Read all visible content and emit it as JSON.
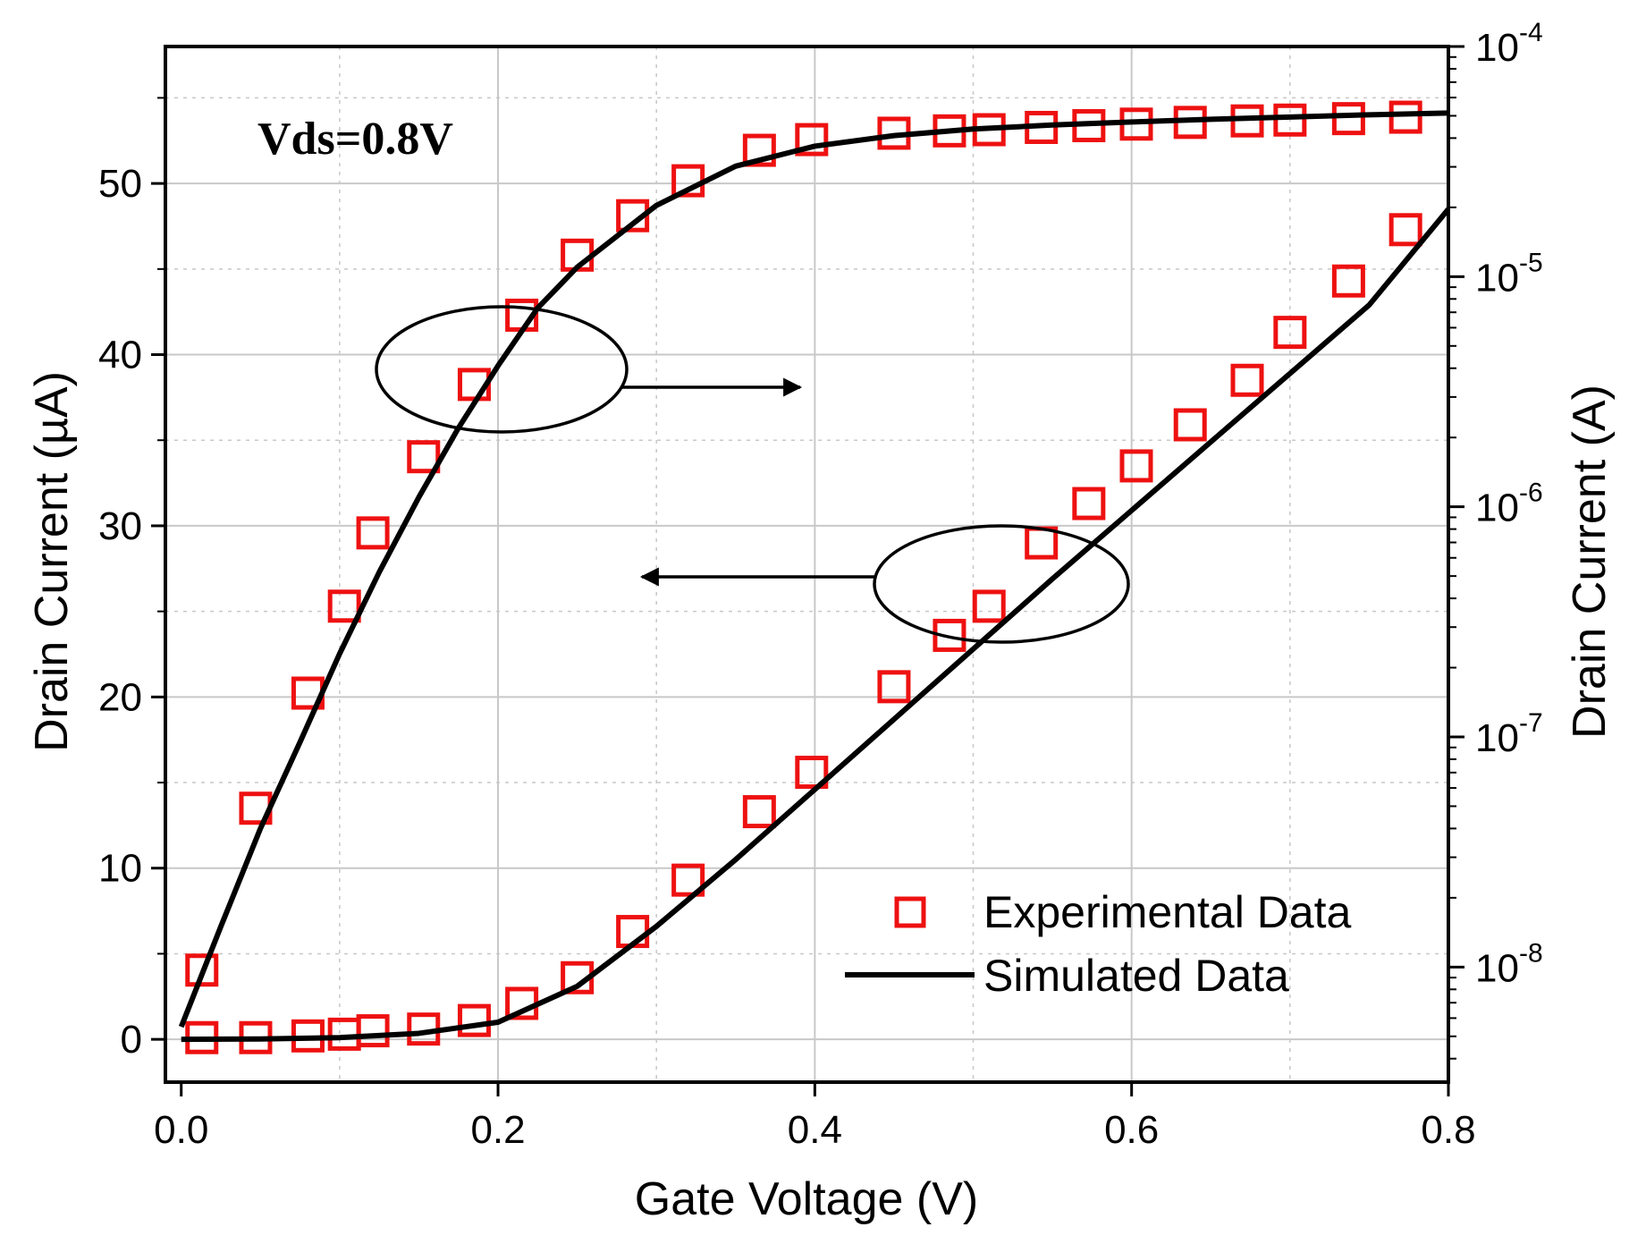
{
  "chart_data": {
    "type": "scatter+line",
    "xlabel": "Gate Voltage (V)",
    "ylabel_left": "Drain Current (µA)",
    "ylabel_right": "Drain Current (A)",
    "annotation": "Vds=0.8V",
    "grid": true,
    "xlim": [
      -0.01,
      0.8
    ],
    "ylim_left": [
      -2.5,
      58
    ],
    "ylim_right_log10": [
      -8.5,
      -4
    ],
    "x_ticks": [
      "0.0",
      "0.2",
      "0.4",
      "0.6",
      "0.8"
    ],
    "y_left_ticks": [
      "0",
      "10",
      "20",
      "30",
      "40",
      "50"
    ],
    "y_right_ticks": [
      {
        "base": "10",
        "exp": "-8"
      },
      {
        "base": "10",
        "exp": "-7"
      },
      {
        "base": "10",
        "exp": "-6"
      },
      {
        "base": "10",
        "exp": "-5"
      },
      {
        "base": "10",
        "exp": "-4"
      }
    ],
    "legend": {
      "position": "bottom-right",
      "entries": [
        "Experimental Data",
        "Simulated Data"
      ]
    },
    "colors": {
      "experimental": "#ee1111",
      "simulated": "#000000",
      "grid": "#c8c8c8"
    },
    "series": [
      {
        "name": "Experimental Data (linear, µA)",
        "axis": "left",
        "marker": "square-open",
        "x": [
          0.013,
          0.047,
          0.08,
          0.103,
          0.121,
          0.153,
          0.185,
          0.215,
          0.25,
          0.285,
          0.32,
          0.365,
          0.398,
          0.45,
          0.485,
          0.51,
          0.543,
          0.573,
          0.603,
          0.637,
          0.673,
          0.7,
          0.737,
          0.773
        ],
        "y": [
          0.1,
          0.1,
          0.2,
          0.3,
          0.5,
          0.6,
          1.1,
          2.1,
          3.6,
          6.3,
          9.3,
          13.3,
          15.6,
          20.6,
          23.6,
          25.3,
          29.0,
          31.3,
          33.5,
          35.9,
          38.5,
          41.3,
          44.3,
          47.3
        ]
      },
      {
        "name": "Simulated Data (linear, µA)",
        "axis": "left",
        "x": [
          0.0,
          0.05,
          0.1,
          0.15,
          0.2,
          0.25,
          0.3,
          0.35,
          0.4,
          0.45,
          0.5,
          0.55,
          0.6,
          0.65,
          0.7,
          0.75,
          0.8
        ],
        "y": [
          0.0,
          0.02,
          0.1,
          0.35,
          1.0,
          3.1,
          6.6,
          10.5,
          14.6,
          18.7,
          22.8,
          26.9,
          30.9,
          34.9,
          38.9,
          42.9,
          48.5
        ]
      },
      {
        "name": "Experimental Data (log, A)",
        "axis": "right",
        "marker": "square-open",
        "x": [
          0.013,
          0.047,
          0.08,
          0.103,
          0.121,
          0.153,
          0.185,
          0.215,
          0.25,
          0.285,
          0.32,
          0.365,
          0.398,
          0.45,
          0.485,
          0.51,
          0.543,
          0.573,
          0.603,
          0.637,
          0.673,
          0.7,
          0.737,
          0.773
        ],
        "y": [
          9.7e-09,
          4.9e-08,
          1.55e-07,
          3.7e-07,
          7.7e-07,
          1.65e-06,
          3.4e-06,
          6.8e-06,
          1.24e-05,
          1.84e-05,
          2.61e-05,
          3.54e-05,
          3.94e-05,
          4.2e-05,
          4.3e-05,
          4.35e-05,
          4.45e-05,
          4.53e-05,
          4.6e-05,
          4.68e-05,
          4.75e-05,
          4.79e-05,
          4.86e-05,
          4.93e-05
        ]
      },
      {
        "name": "Simulated Data (log, A)",
        "axis": "right",
        "x": [
          0.0,
          0.025,
          0.05,
          0.075,
          0.1,
          0.125,
          0.15,
          0.175,
          0.2,
          0.225,
          0.25,
          0.3,
          0.35,
          0.4,
          0.45,
          0.5,
          0.55,
          0.6,
          0.65,
          0.7,
          0.75,
          0.8
        ],
        "y": [
          5.5e-09,
          1.5e-08,
          4e-08,
          9.5e-08,
          2.3e-07,
          5.2e-07,
          1.1e-06,
          2.2e-06,
          4.1e-06,
          7.3e-06,
          1.1e-05,
          2.04e-05,
          3.02e-05,
          3.69e-05,
          4.1e-05,
          4.38e-05,
          4.56e-05,
          4.7e-05,
          4.83e-05,
          4.94e-05,
          5.05e-05,
          5.14e-05
        ]
      }
    ],
    "callouts": [
      {
        "ellipse": "around log curve",
        "arrow_direction": "right",
        "points_to": "right axis"
      },
      {
        "ellipse": "around linear curve",
        "arrow_direction": "left",
        "points_to": "left axis"
      }
    ]
  }
}
